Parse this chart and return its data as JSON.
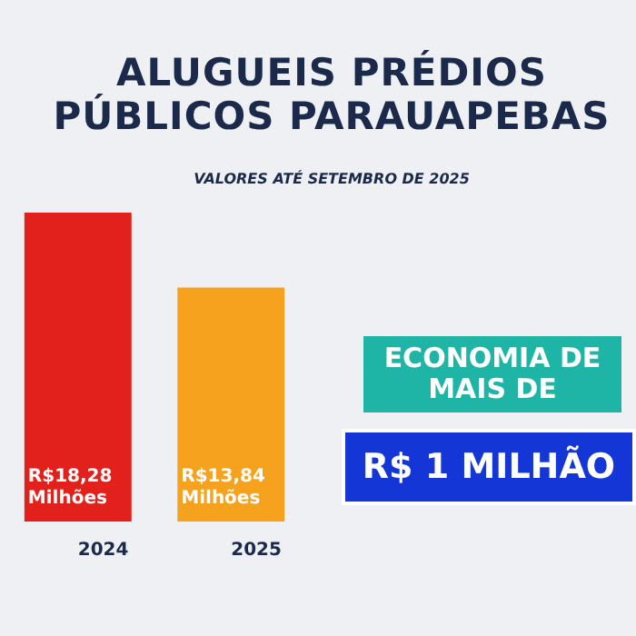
{
  "chart_data": {
    "type": "bar",
    "title": "ALUGUEIS PRÉDIOS PÚBLICOS PARAUAPEBAS",
    "subtitle": "VALORES ATÉ SETEMBRO DE 2025",
    "categories": [
      "2024",
      "2025"
    ],
    "values": [
      18.28,
      13.84
    ],
    "colors": [
      "#e3211c",
      "#f6a21e"
    ],
    "value_labels": [
      "R$18,28 Milhões",
      "R$13,84 Milhões"
    ],
    "annotations": [
      "ECONOMIA DE MAIS DE",
      "R$ 1 MILHÃO"
    ]
  }
}
